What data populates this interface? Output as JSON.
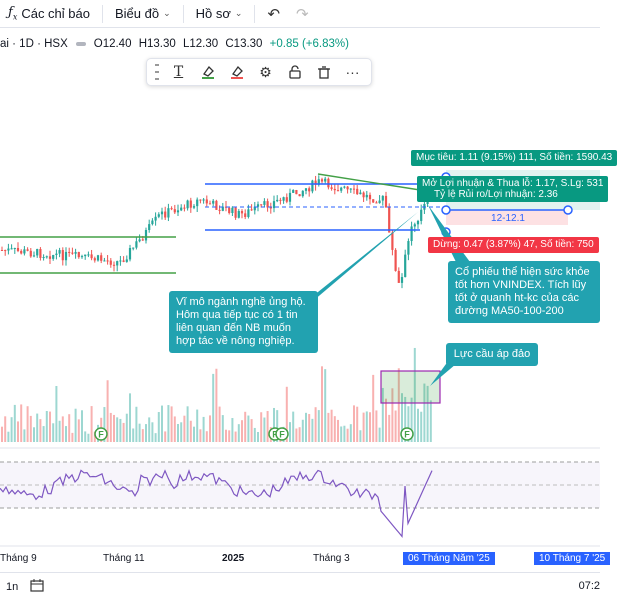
{
  "toolbar": {
    "indicators_label": "Các chỉ báo",
    "chart_label": "Biểu đồ",
    "profile_label": "Hồ sơ",
    "indicator_icon": "fx-icon",
    "undo_icon": "undo-icon",
    "redo_icon": "redo-icon"
  },
  "legend": {
    "symbol": "ai · 1D · HSX",
    "open": "O12.40",
    "high": "H13.30",
    "low": "L12.30",
    "close": "C13.30",
    "change": "+0.85 (+6.83%)",
    "change_color": "#089981"
  },
  "drawing_toolbar": {
    "icons": [
      "grip-icon",
      "text-icon",
      "line-color-icon",
      "fill-color-icon",
      "settings-icon",
      "lock-icon",
      "trash-icon",
      "more-icon"
    ],
    "text_glyph": "T",
    "more_glyph": "···"
  },
  "position": {
    "target_label": "Mục tiêu: 1.11 (9.15%) 111, Số tiền: 1590.43",
    "pnl_label": "Mở Lợi nhuận & Thua lỗ: 1.17, S.Lg: 531",
    "ratio_label": "Tỷ lệ Rủi ro/Lợi nhuận: 2.36",
    "stop_label": "Dừng: 0.47 (3.87%) 47, Số tiền: 750",
    "zone_label": "12-12.1"
  },
  "notes": {
    "macro": "Vĩ mô ngành nghề ủng hộ. Hôm qua tiếp tục có 1 tin liên quan đến NB muốn hợp tác về nông nghiệp.",
    "strength": "Cổ phiếu thể hiện sức khỏe tốt hơn VNINDEX. Tích lũy tốt ở quanh ht-kc của các đường MA50-100-200",
    "demand": "Lực cầu áp đảo"
  },
  "markers": [
    "F",
    "F",
    "F",
    "F"
  ],
  "xaxis": {
    "labels": [
      "Tháng 9",
      "Tháng 11",
      "2025",
      "Tháng 3"
    ],
    "selected_date": "06 Tháng Năm '25",
    "end_date": "10 Tháng 7 '25"
  },
  "bottom": {
    "interval": "1n",
    "calendar_icon": "calendar-icon",
    "time": "07:2"
  },
  "colors": {
    "up": "#26a69a",
    "down": "#ef5350",
    "line_green": "#43a047",
    "line_blue": "#2962ff",
    "rsi": "#7e57c2",
    "note": "#22a2b0"
  },
  "chart_data": {
    "type": "candlestick",
    "x": [
      "Tháng 9",
      "Tháng 11",
      "2025",
      "Tháng 3"
    ],
    "ohlc_last": {
      "open": 12.4,
      "high": 13.3,
      "low": 12.3,
      "close": 13.3
    },
    "position": {
      "target_pct": 9.15,
      "stop_pct": 3.87,
      "risk_reward": 2.36,
      "zone": [
        12,
        12.1
      ]
    },
    "panes": [
      "price",
      "volume",
      "rsi"
    ],
    "grid": false,
    "legend": "top-left"
  }
}
